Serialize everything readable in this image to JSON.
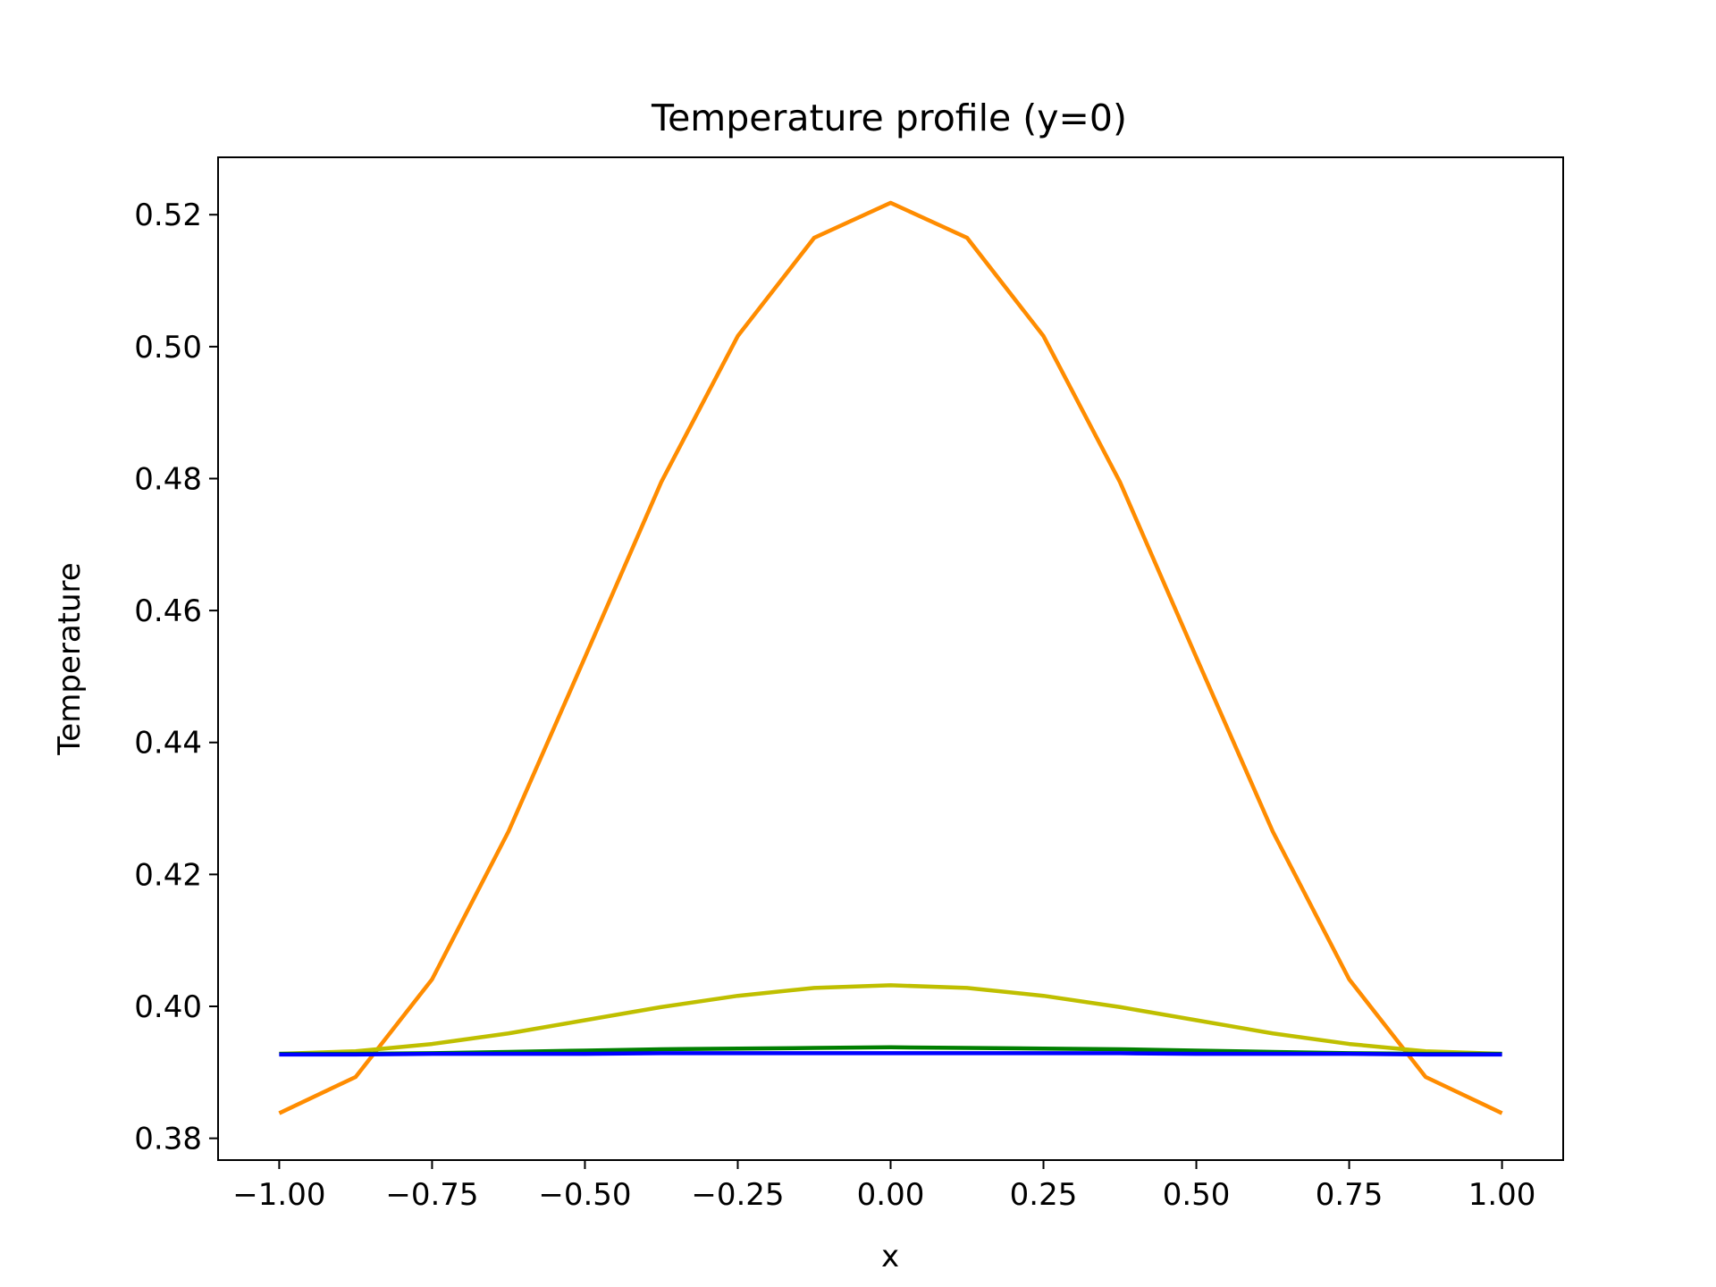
{
  "chart_data": {
    "type": "line",
    "title": "Temperature profile (y=0)",
    "xlabel": "x",
    "ylabel": "Temperature",
    "xlim": [
      -1.1,
      1.1
    ],
    "ylim": [
      0.3767,
      0.5287
    ],
    "xticks": [
      -1.0,
      -0.75,
      -0.5,
      -0.25,
      0.0,
      0.25,
      0.5,
      0.75,
      1.0
    ],
    "xtick_labels": [
      "−1.00",
      "−0.75",
      "−0.50",
      "−0.25",
      "0.00",
      "0.25",
      "0.50",
      "0.75",
      "1.00"
    ],
    "yticks": [
      0.38,
      0.4,
      0.42,
      0.44,
      0.46,
      0.48,
      0.5,
      0.52
    ],
    "ytick_labels": [
      "0.38",
      "0.40",
      "0.42",
      "0.44",
      "0.46",
      "0.48",
      "0.50",
      "0.52"
    ],
    "grid": false,
    "legend": "none",
    "x": [
      -1.0,
      -0.875,
      -0.75,
      -0.625,
      -0.5,
      -0.375,
      -0.25,
      -0.125,
      0.0,
      0.125,
      0.25,
      0.375,
      0.5,
      0.625,
      0.75,
      0.875,
      1.0
    ],
    "series": [
      {
        "color": "#ff8c00",
        "values": [
          0.3838,
          0.3893,
          0.4041,
          0.4265,
          0.4529,
          0.4795,
          0.5016,
          0.5165,
          0.5218,
          0.5165,
          0.5016,
          0.4795,
          0.4529,
          0.4265,
          0.4041,
          0.3893,
          0.3838
        ]
      },
      {
        "color": "#bfbf00",
        "values": [
          0.3928,
          0.3932,
          0.3943,
          0.3959,
          0.3979,
          0.3999,
          0.4016,
          0.4028,
          0.4032,
          0.4028,
          0.4016,
          0.3999,
          0.3979,
          0.3959,
          0.3943,
          0.3932,
          0.3928
        ]
      },
      {
        "color": "#007f00",
        "values": [
          0.3928,
          0.3928,
          0.3929,
          0.3931,
          0.3933,
          0.3935,
          0.3936,
          0.3937,
          0.3938,
          0.3937,
          0.3936,
          0.3935,
          0.3933,
          0.3931,
          0.3929,
          0.3928,
          0.3928
        ]
      },
      {
        "color": "#0000ff",
        "values": [
          0.3927,
          0.3927,
          0.3928,
          0.3928,
          0.3928,
          0.3929,
          0.3929,
          0.3929,
          0.3929,
          0.3929,
          0.3929,
          0.3929,
          0.3928,
          0.3928,
          0.3928,
          0.3927,
          0.3927
        ]
      }
    ]
  }
}
